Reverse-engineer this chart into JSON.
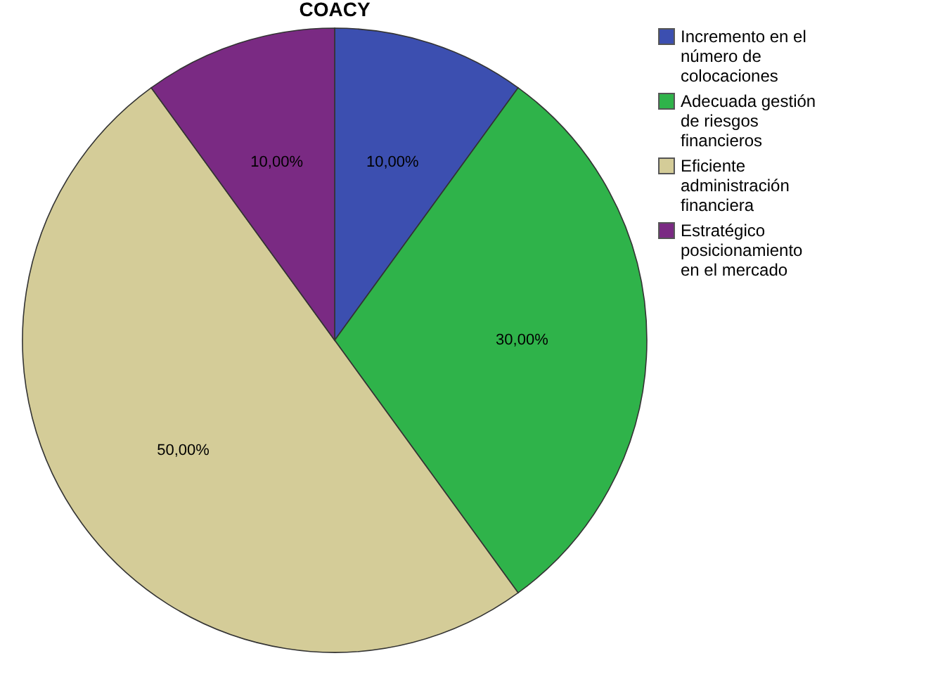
{
  "chart_data": {
    "type": "pie",
    "title": "COACY",
    "categories": [
      "Incremento en el número de colocaciones",
      "Adecuada gestión de riesgos financieros",
      "Eficiente administración financiera",
      "Estratégico posicionamiento en el mercado"
    ],
    "values": [
      10,
      30,
      50,
      10
    ],
    "value_labels": [
      "10,00%",
      "30,00%",
      "50,00%",
      "10,00%"
    ],
    "colors": [
      "#3c4fb0",
      "#2fb34a",
      "#d4cc98",
      "#7a2a83"
    ],
    "legend": "top right"
  }
}
